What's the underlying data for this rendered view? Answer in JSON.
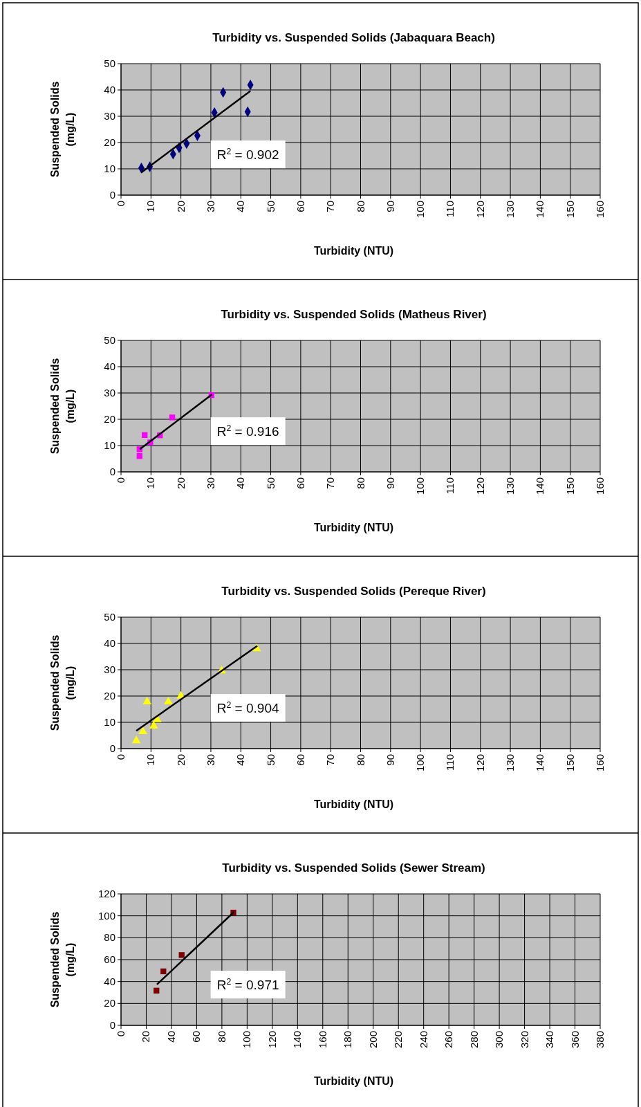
{
  "chart_data": [
    {
      "type": "scatter",
      "title": "Turbidity vs. Suspended Solids (Jabaquara Beach)",
      "xlabel": "Turbidity (NTU)",
      "ylabel": "Suspended Solids\n(mg/L)",
      "xlim": [
        0,
        160
      ],
      "xticks": [
        0,
        10,
        20,
        30,
        40,
        50,
        60,
        70,
        80,
        90,
        100,
        110,
        120,
        130,
        140,
        150,
        160
      ],
      "ylim": [
        0,
        50
      ],
      "yticks": [
        0,
        10,
        20,
        30,
        40,
        50
      ],
      "grid": true,
      "series": [
        {
          "marker": "diamond",
          "color": "#000080",
          "x": [
            6.8,
            9.6,
            17.4,
            19.4,
            21.9,
            25.5,
            31.2,
            34.1,
            42.3,
            43.2
          ],
          "values": [
            10.3,
            10.8,
            15.6,
            18,
            19.6,
            22.6,
            31.4,
            39.1,
            31.7,
            41.9
          ]
        },
        {
          "type": "line",
          "marker": "none",
          "color": "#000000",
          "x": [
            6.8,
            43.2
          ],
          "values": [
            8.6,
            39.6
          ]
        }
      ],
      "annotations": [
        "R$^{2}$ = 0.902"
      ]
    },
    {
      "type": "scatter",
      "title": "Turbidity vs. Suspended Solids (Matheus River)",
      "xlabel": "Turbidity (NTU)",
      "ylabel": "Suspended Solids\n(mg/L)",
      "xlim": [
        0,
        160
      ],
      "xticks": [
        0,
        10,
        20,
        30,
        40,
        50,
        60,
        70,
        80,
        90,
        100,
        110,
        120,
        130,
        140,
        150,
        160
      ],
      "ylim": [
        0,
        50
      ],
      "yticks": [
        0,
        10,
        20,
        30,
        40,
        50
      ],
      "grid": true,
      "series": [
        {
          "marker": "square",
          "color": "#ff00ff",
          "x": [
            6.2,
            6.2,
            7.9,
            9.8,
            13,
            17.1,
            30.2
          ],
          "values": [
            8.6,
            6,
            14,
            11.2,
            13.9,
            20.7,
            29.2
          ]
        },
        {
          "type": "line",
          "marker": "none",
          "color": "#000000",
          "x": [
            6.3,
            30.4
          ],
          "values": [
            8.6,
            29.5
          ]
        }
      ],
      "annotations": [
        "R$^{2}$ = 0.916"
      ]
    },
    {
      "type": "scatter",
      "title": "Turbidity vs. Suspended Solids (Pereque River)",
      "xlabel": "Turbidity (NTU)",
      "ylabel": "Suspended Solids\n(mg/L)",
      "xlim": [
        0,
        160
      ],
      "xticks": [
        0,
        10,
        20,
        30,
        40,
        50,
        60,
        70,
        80,
        90,
        100,
        110,
        120,
        130,
        140,
        150,
        160
      ],
      "ylim": [
        0,
        50
      ],
      "yticks": [
        0,
        10,
        20,
        30,
        40,
        50
      ],
      "grid": true,
      "series": [
        {
          "marker": "triangle",
          "color": "#ffff00",
          "x": [
            5.1,
            7.3,
            8.7,
            10.9,
            12.1,
            15.8,
            20,
            33.6,
            45.3
          ],
          "values": [
            3,
            6.5,
            17.8,
            8.6,
            11,
            17.8,
            20,
            29.6,
            38
          ]
        },
        {
          "type": "line",
          "marker": "none",
          "color": "#000000",
          "x": [
            5.1,
            45.5
          ],
          "values": [
            6.8,
            39.1
          ]
        }
      ],
      "annotations": [
        "R$^{2}$ = 0.904"
      ]
    },
    {
      "type": "scatter",
      "title": "Turbidity vs. Suspended Solids (Sewer Stream)",
      "xlabel": "Turbidity (NTU)",
      "ylabel": "Suspended Solids\n(mg/L)",
      "xlim": [
        0,
        380
      ],
      "xticks": [
        0,
        20,
        40,
        60,
        80,
        100,
        120,
        140,
        160,
        180,
        200,
        220,
        240,
        260,
        280,
        300,
        320,
        340,
        360,
        380
      ],
      "ylim": [
        0,
        120
      ],
      "yticks": [
        0,
        20,
        40,
        60,
        80,
        100,
        120
      ],
      "grid": true,
      "series": [
        {
          "marker": "square",
          "color": "#800000",
          "x": [
            28.1,
            33.6,
            48.1,
            89.1
          ],
          "values": [
            31.7,
            49.3,
            64.2,
            102.9
          ]
        },
        {
          "type": "line",
          "marker": "none",
          "color": "#000000",
          "x": [
            28.5,
            89.5
          ],
          "values": [
            37.3,
            103.4
          ]
        }
      ],
      "annotations": [
        "R$^{2}$ = 0.971"
      ]
    }
  ]
}
